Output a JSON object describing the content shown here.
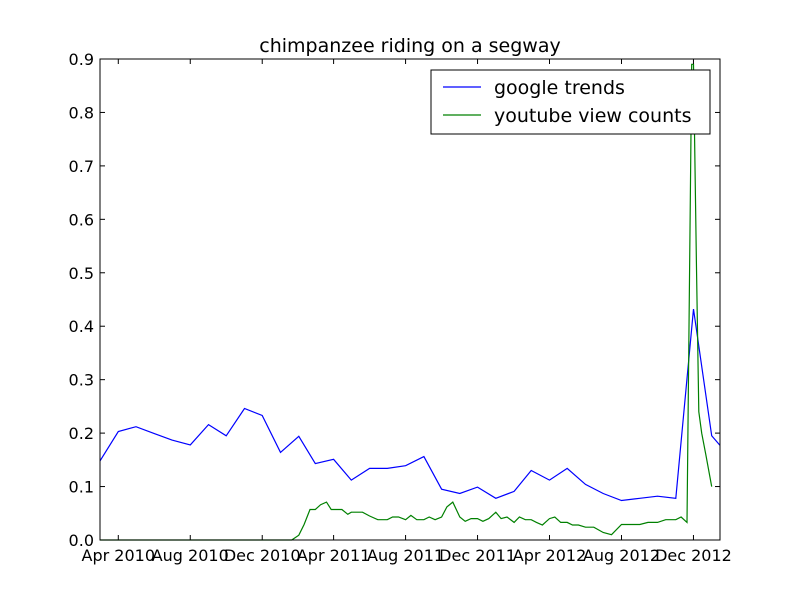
{
  "chart_data": {
    "type": "line",
    "title": "chimpanzee riding on a segway",
    "xlabel": "",
    "ylabel": "",
    "ylim": [
      0,
      0.9
    ],
    "xlim": [
      "2010-03-01",
      "2013-01-15"
    ],
    "y_ticks": [
      0.0,
      0.1,
      0.2,
      0.3,
      0.4,
      0.5,
      0.6,
      0.7,
      0.8,
      0.9
    ],
    "y_tick_labels": [
      "0.0",
      "0.1",
      "0.2",
      "0.3",
      "0.4",
      "0.5",
      "0.6",
      "0.7",
      "0.8",
      "0.9"
    ],
    "x_ticks": [
      "2010-04-01",
      "2010-08-01",
      "2010-12-01",
      "2011-04-01",
      "2011-08-01",
      "2011-12-01",
      "2012-04-01",
      "2012-08-01",
      "2012-12-01"
    ],
    "x_tick_labels": [
      "Apr 2010",
      "Aug 2010",
      "Dec 2010",
      "Apr 2011",
      "Aug 2011",
      "Dec 2011",
      "Apr 2012",
      "Aug 2012",
      "Dec 2012"
    ],
    "grid": false,
    "legend": {
      "placement": "top-right",
      "entries": [
        "google trends",
        "youtube view counts"
      ]
    },
    "series": [
      {
        "name": "google trends",
        "color": "#0000ff",
        "x": [
          "2010-03-01",
          "2010-04-01",
          "2010-05-01",
          "2010-06-01",
          "2010-07-01",
          "2010-08-01",
          "2010-09-01",
          "2010-10-01",
          "2010-11-01",
          "2010-12-01",
          "2011-01-01",
          "2011-02-01",
          "2011-03-01",
          "2011-04-01",
          "2011-05-01",
          "2011-06-01",
          "2011-07-01",
          "2011-08-01",
          "2011-09-01",
          "2011-10-01",
          "2011-11-01",
          "2011-12-01",
          "2012-01-01",
          "2012-02-01",
          "2012-03-01",
          "2012-04-01",
          "2012-05-01",
          "2012-06-01",
          "2012-07-01",
          "2012-08-01",
          "2012-09-01",
          "2012-10-01",
          "2012-11-01",
          "2012-12-01",
          "2013-01-01",
          "2013-01-15"
        ],
        "values": [
          0.148,
          0.203,
          0.212,
          0.199,
          0.187,
          0.178,
          0.216,
          0.195,
          0.246,
          0.233,
          0.164,
          0.194,
          0.143,
          0.151,
          0.112,
          0.134,
          0.134,
          0.139,
          0.156,
          0.095,
          0.087,
          0.099,
          0.078,
          0.091,
          0.13,
          0.112,
          0.134,
          0.104,
          0.087,
          0.074,
          0.078,
          0.082,
          0.078,
          0.432,
          0.195,
          0.177
        ]
      },
      {
        "name": "youtube view counts",
        "color": "#008000",
        "x": [
          "2010-03-01",
          "2011-01-20",
          "2011-02-01",
          "2011-02-10",
          "2011-02-20",
          "2011-03-01",
          "2011-03-10",
          "2011-03-20",
          "2011-03-28",
          "2011-04-05",
          "2011-04-15",
          "2011-04-25",
          "2011-05-01",
          "2011-05-10",
          "2011-05-20",
          "2011-06-01",
          "2011-06-15",
          "2011-07-01",
          "2011-07-10",
          "2011-07-20",
          "2011-08-01",
          "2011-08-10",
          "2011-08-20",
          "2011-09-01",
          "2011-09-10",
          "2011-09-20",
          "2011-10-01",
          "2011-10-10",
          "2011-10-20",
          "2011-11-01",
          "2011-11-10",
          "2011-11-20",
          "2011-12-01",
          "2011-12-10",
          "2011-12-20",
          "2012-01-01",
          "2012-01-10",
          "2012-01-20",
          "2012-02-01",
          "2012-02-10",
          "2012-02-20",
          "2012-03-01",
          "2012-03-10",
          "2012-03-20",
          "2012-04-01",
          "2012-04-10",
          "2012-04-20",
          "2012-05-01",
          "2012-05-10",
          "2012-05-20",
          "2012-06-01",
          "2012-06-15",
          "2012-07-01",
          "2012-07-15",
          "2012-08-01",
          "2012-08-10",
          "2012-08-20",
          "2012-09-01",
          "2012-09-15",
          "2012-10-01",
          "2012-10-15",
          "2012-11-01",
          "2012-11-10",
          "2012-11-20",
          "2012-11-28",
          "2012-12-01",
          "2012-12-06",
          "2012-12-10",
          "2012-12-15",
          "2012-12-22",
          "2013-01-01"
        ],
        "values": [
          0.0,
          0.0,
          0.009,
          0.029,
          0.057,
          0.057,
          0.066,
          0.071,
          0.057,
          0.057,
          0.057,
          0.048,
          0.052,
          0.052,
          0.052,
          0.045,
          0.038,
          0.038,
          0.043,
          0.043,
          0.038,
          0.046,
          0.038,
          0.038,
          0.043,
          0.038,
          0.043,
          0.062,
          0.071,
          0.043,
          0.035,
          0.04,
          0.04,
          0.035,
          0.04,
          0.052,
          0.04,
          0.043,
          0.033,
          0.043,
          0.038,
          0.038,
          0.033,
          0.028,
          0.04,
          0.043,
          0.033,
          0.033,
          0.028,
          0.028,
          0.024,
          0.024,
          0.014,
          0.01,
          0.029,
          0.029,
          0.029,
          0.029,
          0.033,
          0.033,
          0.038,
          0.038,
          0.043,
          0.033,
          0.89,
          0.89,
          0.52,
          0.24,
          0.2,
          0.16,
          0.1
        ]
      }
    ]
  }
}
